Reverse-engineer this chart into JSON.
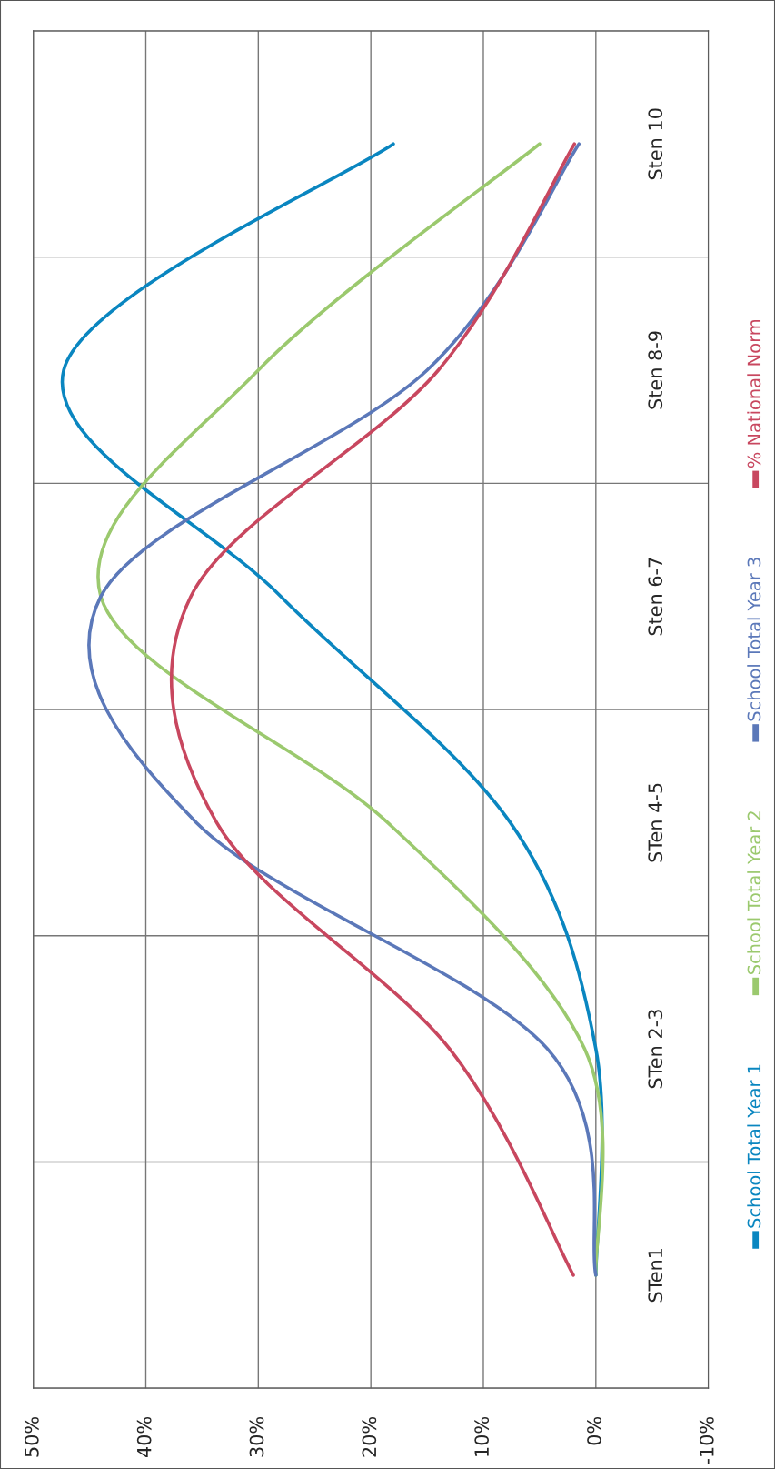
{
  "chart_data": {
    "type": "line",
    "orientation": "horizontal",
    "categories": [
      "Sten 10",
      "Sten 8-9",
      "Sten 6-7",
      "STen 4-5",
      "STen 2-3",
      "STen1"
    ],
    "series": [
      {
        "name": "School Total Year 1",
        "color": "#0a86c0",
        "values": [
          18,
          47.3,
          28,
          7.6,
          0,
          0
        ]
      },
      {
        "name": "School Total Year 2",
        "color": "#9bc96e",
        "values": [
          5,
          30,
          44,
          18.5,
          1,
          0
        ]
      },
      {
        "name": "School Total Year 3",
        "color": "#5b78b9",
        "values": [
          1.5,
          15,
          44,
          35.5,
          4.3,
          0
        ]
      },
      {
        "name": "% National Norm",
        "color": "#c8475f",
        "values": [
          1.9,
          14,
          36,
          33.7,
          13,
          2
        ]
      }
    ],
    "xlim": [
      50,
      -10
    ],
    "xticks": [
      {
        "value": 50,
        "label": "50%"
      },
      {
        "value": 40,
        "label": "40%"
      },
      {
        "value": 30,
        "label": "30%"
      },
      {
        "value": 20,
        "label": "20%"
      },
      {
        "value": 10,
        "label": "10%"
      },
      {
        "value": 0,
        "label": "0%"
      },
      {
        "value": -10,
        "label": "-10%"
      }
    ],
    "grid": true,
    "legend": "right"
  }
}
